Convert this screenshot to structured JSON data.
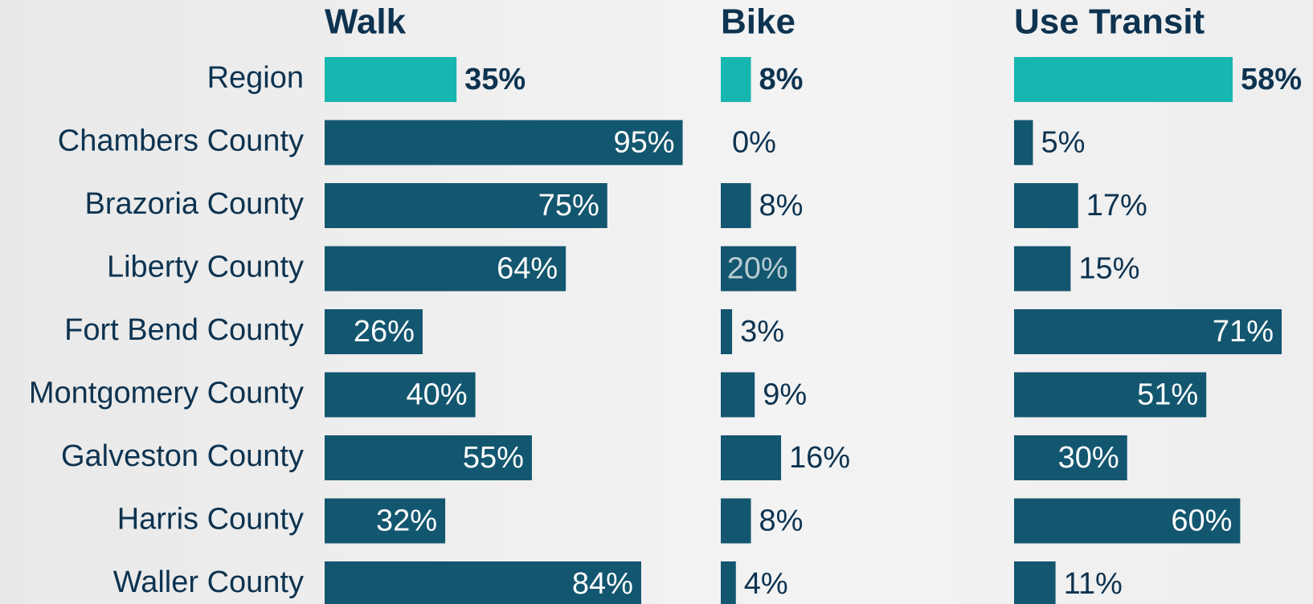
{
  "chart_data": {
    "type": "bar",
    "orientation": "horizontal",
    "categories": [
      "Region",
      "Chambers County",
      "Brazoria County",
      "Liberty County",
      "Fort Bend County",
      "Montgomery County",
      "Galveston County",
      "Harris County",
      "Waller County"
    ],
    "xlim": [
      0,
      100
    ],
    "highlight_color": "#17b6b0",
    "series": [
      {
        "name": "Walk",
        "color": "#13566f",
        "values": [
          35,
          95,
          75,
          64,
          26,
          40,
          55,
          32,
          84
        ],
        "value_labels": [
          "35%",
          "95%",
          "75%",
          "64%",
          "26%",
          "40%",
          "55%",
          "32%",
          "84%"
        ],
        "colors": [
          "#17b6b0",
          "#13566f",
          "#13566f",
          "#13566f",
          "#13566f",
          "#13566f",
          "#13566f",
          "#13566f",
          "#13566f"
        ]
      },
      {
        "name": "Bike",
        "color": "#13566f",
        "values": [
          8,
          0,
          8,
          20,
          3,
          9,
          16,
          8,
          4
        ],
        "value_labels": [
          "8%",
          "0%",
          "8%",
          "20%",
          "3%",
          "9%",
          "16%",
          "8%",
          "4%"
        ],
        "colors": [
          "#17b6b0",
          "#13566f",
          "#13566f",
          "#13566f",
          "#13566f",
          "#13566f",
          "#13566f",
          "#13566f",
          "#13566f"
        ]
      },
      {
        "name": "Use Transit",
        "color": "#13566f",
        "values": [
          58,
          5,
          17,
          15,
          71,
          51,
          30,
          60,
          11
        ],
        "value_labels": [
          "58%",
          "5%",
          "17%",
          "15%",
          "71%",
          "51%",
          "30%",
          "60%",
          "11%"
        ],
        "colors": [
          "#17b6b0",
          "#13566f",
          "#13566f",
          "#13566f",
          "#13566f",
          "#13566f",
          "#13566f",
          "#13566f",
          "#13566f"
        ]
      }
    ]
  }
}
